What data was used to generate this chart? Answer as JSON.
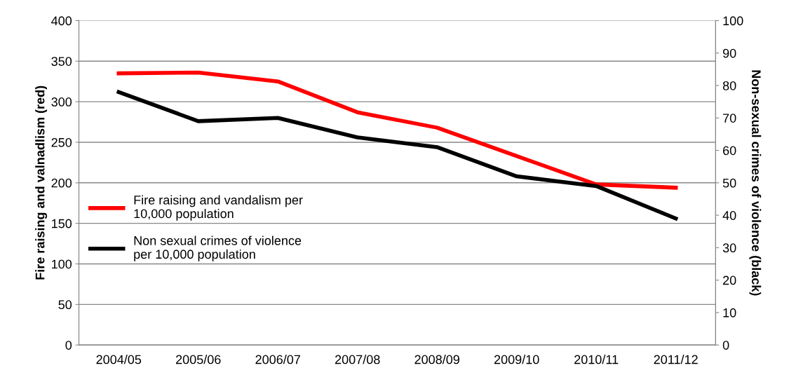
{
  "chart_data": {
    "type": "line",
    "ylabel": "Fire raising and valnadlism (red)",
    "y2label": "Non-sexual crimes of violence (black)",
    "categories": [
      "2004/05",
      "2005/06",
      "2006/07",
      "2007/08",
      "2008/09",
      "2009/10",
      "2010/11",
      "2011/12"
    ],
    "series": [
      {
        "name": "Fire raising and vandalism per 10,000 population",
        "color": "#ff0000",
        "values": [
          335,
          336,
          325,
          287,
          268,
          233,
          198,
          194
        ]
      },
      {
        "name": "Non sexual crimes of violence per 10,000 population",
        "color": "#000000",
        "axis": "y2",
        "values": [
          78,
          69,
          70,
          64,
          61,
          52,
          49,
          39
        ]
      }
    ],
    "ylim": [
      0,
      400
    ],
    "yticks": [
      0,
      50,
      100,
      150,
      200,
      250,
      300,
      350,
      400
    ],
    "y2lim": [
      0,
      100
    ],
    "y2ticks": [
      0,
      10,
      20,
      30,
      40,
      50,
      60,
      70,
      80,
      90,
      100
    ],
    "grid": "y",
    "legend": "left",
    "marker": "none",
    "line_style": "solid"
  }
}
